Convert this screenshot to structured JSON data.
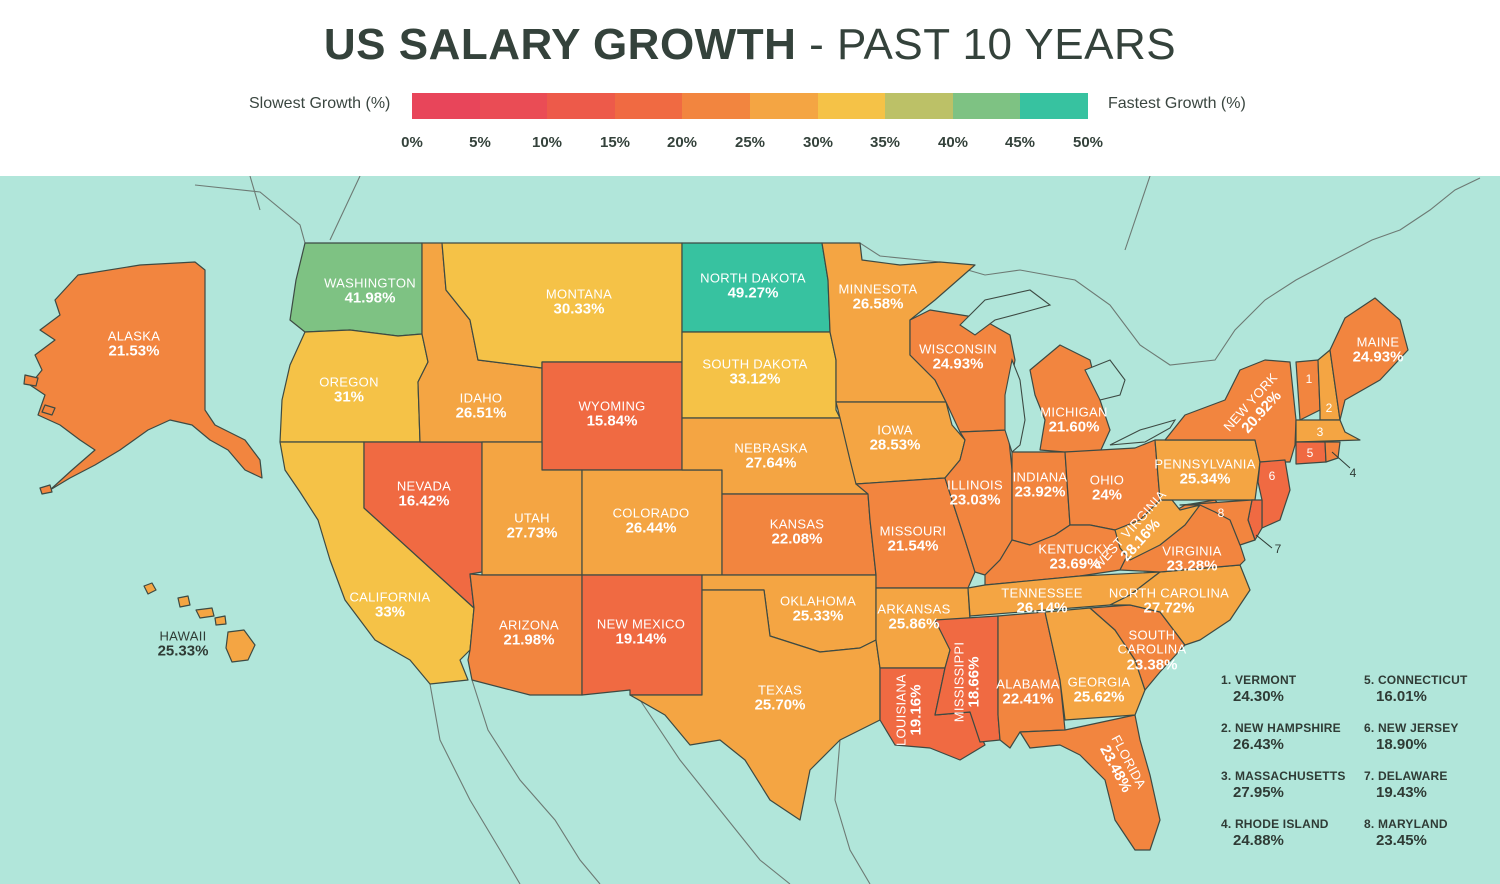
{
  "title": {
    "bold": "US SALARY GROWTH",
    "light": "- PAST 10 YEARS"
  },
  "legend": {
    "slow_label": "Slowest Growth (%)",
    "fast_label": "Fastest Growth (%)",
    "colors": [
      "#e8455a",
      "#ea4c55",
      "#ed5a4a",
      "#f06a42",
      "#f2853f",
      "#f4a543",
      "#f5c247",
      "#bcc167",
      "#7ec283",
      "#37c2a0"
    ],
    "ticks": [
      "0%",
      "5%",
      "10%",
      "15%",
      "20%",
      "25%",
      "30%",
      "35%",
      "40%",
      "45%",
      "50%"
    ]
  },
  "map": {
    "sea_color": "#b1e6da",
    "states": {
      "washington": {
        "name": "WASHINGTON",
        "value": "41.98%"
      },
      "oregon": {
        "name": "OREGON",
        "value": "31%"
      },
      "california": {
        "name": "CALIFORNIA",
        "value": "33%"
      },
      "nevada": {
        "name": "NEVADA",
        "value": "16.42%"
      },
      "idaho": {
        "name": "IDAHO",
        "value": "26.51%"
      },
      "montana": {
        "name": "MONTANA",
        "value": "30.33%"
      },
      "wyoming": {
        "name": "WYOMING",
        "value": "15.84%"
      },
      "utah": {
        "name": "UTAH",
        "value": "27.73%"
      },
      "arizona": {
        "name": "ARIZONA",
        "value": "21.98%"
      },
      "colorado": {
        "name": "COLORADO",
        "value": "26.44%"
      },
      "new_mexico": {
        "name": "NEW MEXICO",
        "value": "19.14%"
      },
      "north_dakota": {
        "name": "NORTH DAKOTA",
        "value": "49.27%"
      },
      "south_dakota": {
        "name": "SOUTH DAKOTA",
        "value": "33.12%"
      },
      "nebraska": {
        "name": "NEBRASKA",
        "value": "27.64%"
      },
      "kansas": {
        "name": "KANSAS",
        "value": "22.08%"
      },
      "oklahoma": {
        "name": "OKLAHOMA",
        "value": "25.33%"
      },
      "texas": {
        "name": "TEXAS",
        "value": "25.70%"
      },
      "minnesota": {
        "name": "MINNESOTA",
        "value": "26.58%"
      },
      "iowa": {
        "name": "IOWA",
        "value": "28.53%"
      },
      "missouri": {
        "name": "MISSOURI",
        "value": "21.54%"
      },
      "arkansas": {
        "name": "ARKANSAS",
        "value": "25.86%"
      },
      "louisiana": {
        "name": "LOUISIANA",
        "value": "19.16%"
      },
      "wisconsin": {
        "name": "WISCONSIN",
        "value": "24.93%"
      },
      "illinois": {
        "name": "ILLINOIS",
        "value": "23.03%"
      },
      "mississippi": {
        "name": "MISSISSIPPI",
        "value": "18.66%"
      },
      "michigan": {
        "name": "MICHIGAN",
        "value": "21.60%"
      },
      "indiana": {
        "name": "INDIANA",
        "value": "23.92%"
      },
      "ohio": {
        "name": "OHIO",
        "value": "24%"
      },
      "kentucky": {
        "name": "KENTUCKY",
        "value": "23.69%"
      },
      "tennessee": {
        "name": "TENNESSEE",
        "value": "26.14%"
      },
      "alabama": {
        "name": "ALABAMA",
        "value": "22.41%"
      },
      "georgia": {
        "name": "GEORGIA",
        "value": "25.62%"
      },
      "florida": {
        "name": "FLORIDA",
        "value": "23.48%"
      },
      "south_carolina": {
        "name": "SOUTH CAROLINA",
        "value": "23.38%"
      },
      "north_carolina": {
        "name": "NORTH CAROLINA",
        "value": "27.72%"
      },
      "virginia": {
        "name": "VIRGINIA",
        "value": "23.28%"
      },
      "west_virginia": {
        "name": "WEST VIRGINIA",
        "value": "28.16%"
      },
      "pennsylvania": {
        "name": "PENNSYLVANIA",
        "value": "25.34%"
      },
      "new_york": {
        "name": "NEW YORK",
        "value": "20.92%"
      },
      "maine": {
        "name": "MAINE",
        "value": "24.93%"
      },
      "alaska": {
        "name": "ALASKA",
        "value": "21.53%"
      },
      "hawaii": {
        "name": "HAWAII",
        "value": "25.33%"
      }
    },
    "small_state_numbers": [
      "1",
      "2",
      "3",
      "4",
      "5",
      "6",
      "7",
      "8"
    ]
  },
  "footnotes": [
    {
      "label": "1. VERMONT",
      "value": "24.30%"
    },
    {
      "label": "2. NEW HAMPSHIRE",
      "value": "26.43%"
    },
    {
      "label": "3. MASSACHUSETTS",
      "value": "27.95%"
    },
    {
      "label": "4. RHODE ISLAND",
      "value": "24.88%"
    },
    {
      "label": "5. CONNECTICUT",
      "value": "16.01%"
    },
    {
      "label": "6. NEW JERSEY",
      "value": "18.90%"
    },
    {
      "label": "7. DELAWARE",
      "value": "19.43%"
    },
    {
      "label": "8. MARYLAND",
      "value": "23.45%"
    }
  ]
}
